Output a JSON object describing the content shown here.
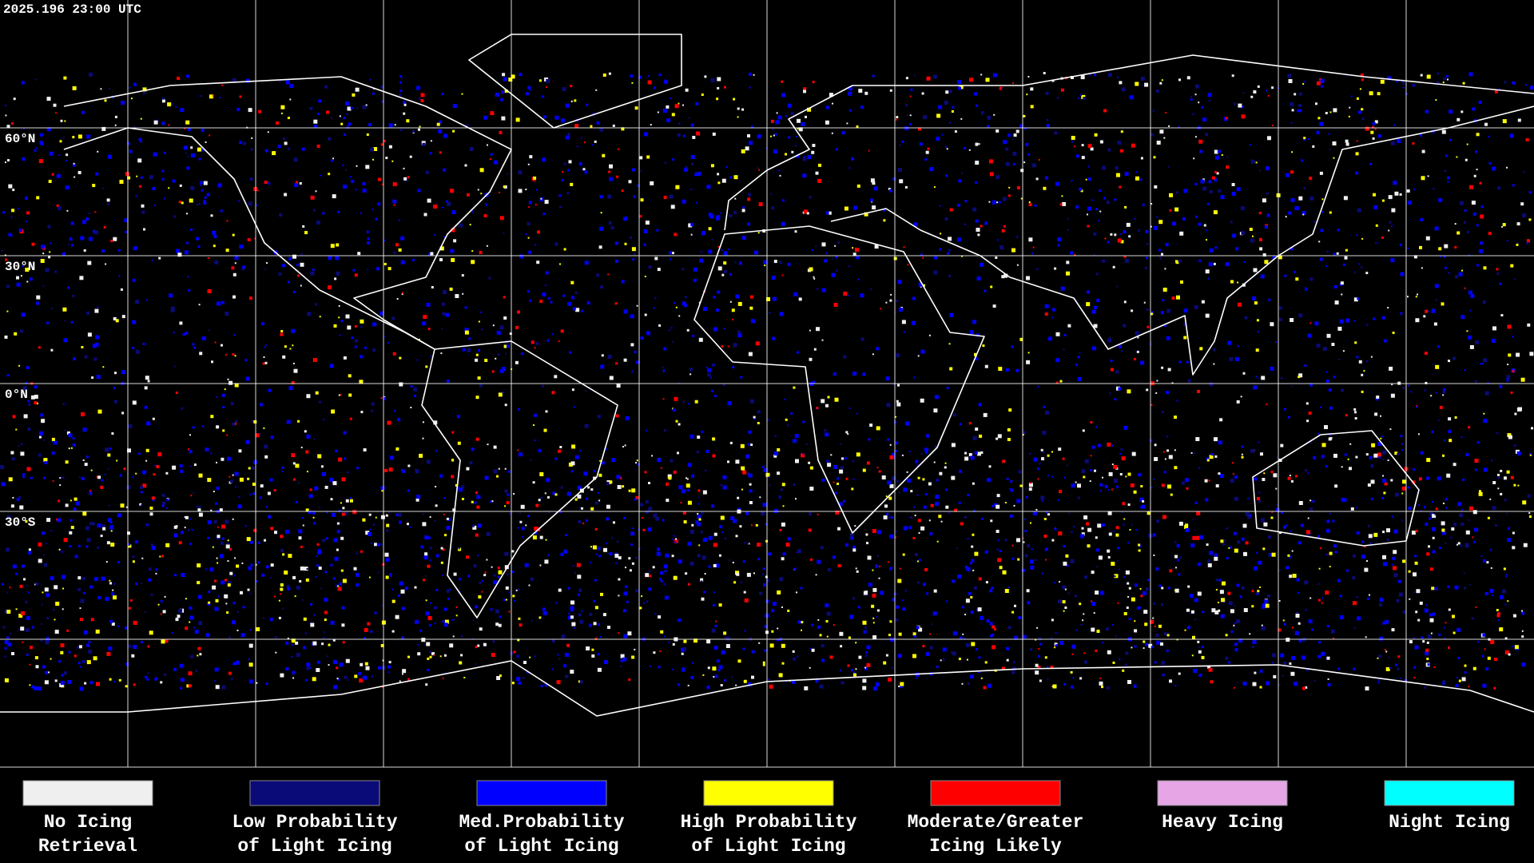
{
  "header": {
    "timestamp": "2025.196 23:00 UTC"
  },
  "map": {
    "lat_labels": [
      "60°N",
      "30°N",
      "0°N",
      "30°S"
    ]
  },
  "legend": [
    {
      "lines": [
        "No Icing",
        "Retrieval"
      ],
      "color": "#efefef"
    },
    {
      "lines": [
        "Low Probability",
        "of Light Icing"
      ],
      "color": "#0a0a78"
    },
    {
      "lines": [
        "Med.Probability",
        "of Light Icing"
      ],
      "color": "#0000ff"
    },
    {
      "lines": [
        "High Probability",
        "of Light Icing"
      ],
      "color": "#ffff00"
    },
    {
      "lines": [
        "Moderate/Greater",
        "Icing Likely"
      ],
      "color": "#ff0000"
    },
    {
      "lines": [
        "Heavy Icing"
      ],
      "color": "#e6a6e6"
    },
    {
      "lines": [
        "Night Icing"
      ],
      "color": "#00ffff"
    }
  ]
}
